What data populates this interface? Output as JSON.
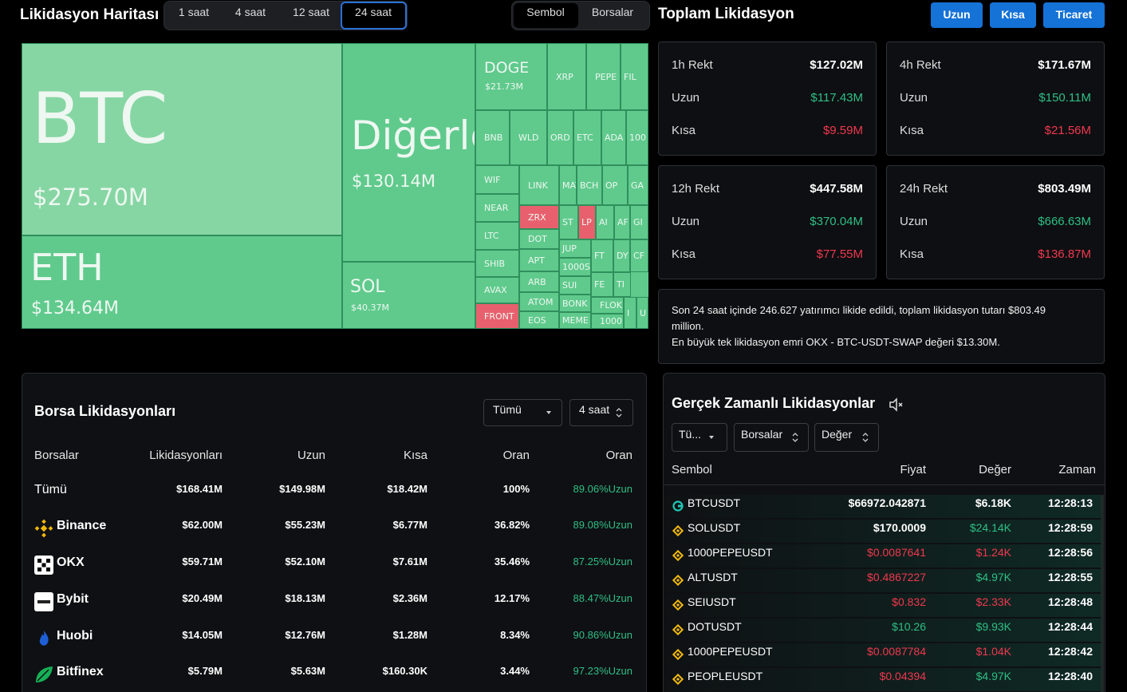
{
  "header": {
    "title": "Likidasyon Haritası",
    "time_tabs": [
      "1 saat",
      "4 saat",
      "12 saat",
      "24 saat"
    ],
    "active_time_tab": 3,
    "view_tabs": [
      "Sembol",
      "Borsalar"
    ],
    "active_view_tab": 0,
    "summary_title": "Toplam Likidasyon",
    "buttons": [
      "Uzun",
      "Kısa",
      "Ticaret"
    ]
  },
  "treemap": {
    "cells": [
      {
        "label": "BTC",
        "value": "$275.70M",
        "color": "#86d6a3"
      },
      {
        "label": "ETH",
        "value": "$134.64M",
        "color": "#5fca8c"
      },
      {
        "label": "Diğerle",
        "value": "$130.14M",
        "color": "#5fca8c"
      },
      {
        "label": "SOL",
        "value": "$40.37M",
        "color": "#5fca8c"
      },
      {
        "label": "DOGE",
        "value": "$21.73M",
        "color": "#5fca8c"
      },
      {
        "label": "XRP",
        "color": "#5fca8c"
      },
      {
        "label": "PEPE",
        "color": "#5fca8c"
      },
      {
        "label": "FIL",
        "color": "#5fca8c"
      },
      {
        "label": "BNB",
        "color": "#5fca8c"
      },
      {
        "label": "WLD",
        "color": "#5fca8c"
      },
      {
        "label": "ORD",
        "color": "#5fca8c"
      },
      {
        "label": "ETC",
        "color": "#5fca8c"
      },
      {
        "label": "ADA",
        "color": "#5fca8c"
      },
      {
        "label": "100",
        "color": "#5fca8c"
      },
      {
        "label": "WIF",
        "color": "#5fca8c"
      },
      {
        "label": "NEAR",
        "color": "#5fca8c"
      },
      {
        "label": "LTC",
        "color": "#5fca8c"
      },
      {
        "label": "SHIB",
        "color": "#5fca8c"
      },
      {
        "label": "AVAX",
        "color": "#5fca8c"
      },
      {
        "label": "FRONT",
        "color": "#e8606d"
      },
      {
        "label": "LINK",
        "color": "#5fca8c"
      },
      {
        "label": "ZRX",
        "color": "#e8606d"
      },
      {
        "label": "DOT",
        "color": "#5fca8c"
      },
      {
        "label": "APT",
        "color": "#5fca8c"
      },
      {
        "label": "ARB",
        "color": "#5fca8c"
      },
      {
        "label": "ATOM",
        "color": "#5fca8c"
      },
      {
        "label": "EOS",
        "color": "#5fca8c"
      },
      {
        "label": "MAT",
        "color": "#5fca8c"
      },
      {
        "label": "BCH",
        "color": "#5fca8c"
      },
      {
        "label": "OP",
        "color": "#5fca8c"
      },
      {
        "label": "GA",
        "color": "#5fca8c"
      },
      {
        "label": "ST",
        "color": "#5fca8c"
      },
      {
        "label": "LP",
        "color": "#e8606d"
      },
      {
        "label": "AI",
        "color": "#5fca8c"
      },
      {
        "label": "AF",
        "color": "#5fca8c"
      },
      {
        "label": "GI",
        "color": "#5fca8c"
      },
      {
        "label": "JUP",
        "color": "#5fca8c"
      },
      {
        "label": "1000S",
        "color": "#5fca8c"
      },
      {
        "label": "SUI",
        "color": "#5fca8c"
      },
      {
        "label": "BONK",
        "color": "#5fca8c"
      },
      {
        "label": "MEME",
        "color": "#5fca8c"
      },
      {
        "label": "FT",
        "color": "#5fca8c"
      },
      {
        "label": "DY",
        "color": "#5fca8c"
      },
      {
        "label": "CF",
        "color": "#5fca8c"
      },
      {
        "label": "FE",
        "color": "#5fca8c"
      },
      {
        "label": "TI",
        "color": "#5fca8c"
      },
      {
        "label": "FLOK",
        "color": "#5fca8c"
      },
      {
        "label": "1000",
        "color": "#5fca8c"
      },
      {
        "label": "I",
        "color": "#5fca8c"
      },
      {
        "label": "U",
        "color": "#5fca8c"
      }
    ]
  },
  "rekt_cards": [
    {
      "label": "1h Rekt",
      "total": "$127.02M",
      "long_label": "Uzun",
      "long": "$117.43M",
      "short_label": "Kısa",
      "short": "$9.59M"
    },
    {
      "label": "4h Rekt",
      "total": "$171.67M",
      "long_label": "Uzun",
      "long": "$150.11M",
      "short_label": "Kısa",
      "short": "$21.56M"
    },
    {
      "label": "12h Rekt",
      "total": "$447.58M",
      "long_label": "Uzun",
      "long": "$370.04M",
      "short_label": "Kısa",
      "short": "$77.55M"
    },
    {
      "label": "24h Rekt",
      "total": "$803.49M",
      "long_label": "Uzun",
      "long": "$666.63M",
      "short_label": "Kısa",
      "short": "$136.87M"
    }
  ],
  "info": {
    "lines": [
      "Son 24 saat içinde 246.627 yatırımcı likide edildi, toplam likidasyon tutarı $803.49 million.",
      "En büyük tek likidasyon emri OKX - BTC-USDT-SWAP değeri $13.30M."
    ]
  },
  "exchange_panel": {
    "title": "Borsa Likidasyonları",
    "filters": [
      "Tümü",
      "4 saat"
    ],
    "columns": [
      "Borsalar",
      "Likidasyonları",
      "Uzun",
      "Kısa",
      "Oran",
      "Oran"
    ],
    "rows": [
      [
        "Tümü",
        "$168.41M",
        "$149.98M",
        "$18.42M",
        "100%",
        "89.06%Uzun"
      ],
      [
        "Binance",
        "$62.00M",
        "$55.23M",
        "$6.77M",
        "36.82%",
        "89.08%Uzun"
      ],
      [
        "OKX",
        "$59.71M",
        "$52.10M",
        "$7.61M",
        "35.46%",
        "87.25%Uzun"
      ],
      [
        "Bybit",
        "$20.49M",
        "$18.13M",
        "$2.36M",
        "12.17%",
        "88.47%Uzun"
      ],
      [
        "Huobi",
        "$14.05M",
        "$12.76M",
        "$1.28M",
        "8.34%",
        "90.86%Uzun"
      ],
      [
        "Bitfinex",
        "$5.79M",
        "$5.63M",
        "$160.30K",
        "3.44%",
        "97.23%Uzun"
      ]
    ]
  },
  "realtime_panel": {
    "title": "Gerçek Zamanlı Likidasyonlar",
    "filters": [
      "Tü...",
      "Borsalar",
      "Değer"
    ],
    "columns": [
      "Sembol",
      "Fiyat",
      "Değer",
      "Zaman"
    ],
    "rows": [
      {
        "symbol": "BTCUSDT",
        "price": "$66972.042871",
        "value": "$6.18K",
        "time": "12:28:13",
        "price_color": "#ffffff",
        "value_color": "#ffffff"
      },
      {
        "symbol": "SOLUSDT",
        "price": "$170.0009",
        "value": "$24.14K",
        "time": "12:28:59",
        "price_color": "#ffffff",
        "value_color": "#2fbf85"
      },
      {
        "symbol": "1000PEPEUSDT",
        "price": "$0.0087641",
        "value": "$1.24K",
        "time": "12:28:56",
        "price_color": "#f0384f",
        "value_color": "#f0384f"
      },
      {
        "symbol": "ALTUSDT",
        "price": "$0.4867227",
        "value": "$4.97K",
        "time": "12:28:55",
        "price_color": "#f0384f",
        "value_color": "#2fbf85"
      },
      {
        "symbol": "SEIUSDT",
        "price": "$0.832",
        "value": "$2.33K",
        "time": "12:28:48",
        "price_color": "#f0384f",
        "value_color": "#f0384f"
      },
      {
        "symbol": "DOTUSDT",
        "price": "$10.26",
        "value": "$9.93K",
        "time": "12:28:44",
        "price_color": "#2fbf85",
        "value_color": "#2fbf85"
      },
      {
        "symbol": "1000PEPEUSDT",
        "price": "$0.0087784",
        "value": "$1.04K",
        "time": "12:28:42",
        "price_color": "#f0384f",
        "value_color": "#f0384f"
      },
      {
        "symbol": "PEOPLEUSDT",
        "price": "$0.04394",
        "value": "$4.97K",
        "time": "12:28:40",
        "price_color": "#f0384f",
        "value_color": "#2fbf85"
      }
    ]
  }
}
